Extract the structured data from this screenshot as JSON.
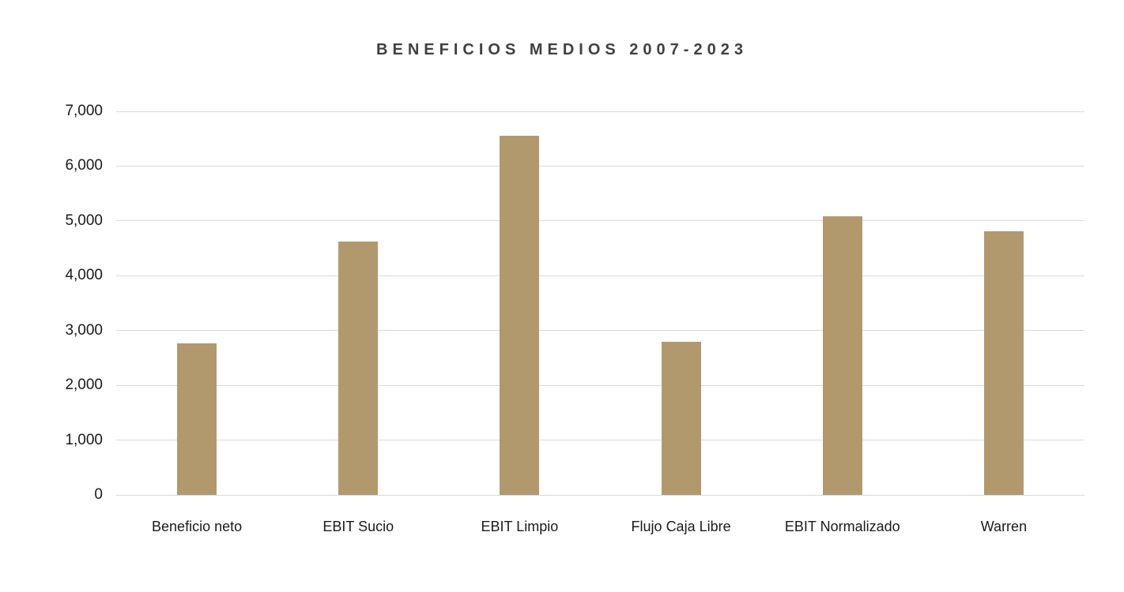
{
  "page": {
    "background": "#ffffff"
  },
  "chart_data": {
    "type": "bar",
    "title": "BENEFICIOS MEDIOS 2007-2023",
    "categories": [
      "Beneficio neto",
      "EBIT Sucio",
      "EBIT Limpio",
      "Flujo Caja Libre",
      "EBIT Normalizado",
      "Warren"
    ],
    "values": [
      2760,
      4620,
      6560,
      2790,
      5090,
      4810
    ],
    "xlabel": "",
    "ylabel": "",
    "ylim": [
      0,
      7000
    ],
    "ytick_interval": 1000,
    "ytick_labels": [
      "0",
      "1,000",
      "2,000",
      "3,000",
      "4,000",
      "5,000",
      "6,000",
      "7,000"
    ],
    "grid": true,
    "legend": false,
    "colors": {
      "bar": "#B2996D",
      "gridline": "#DADADA",
      "title": "#404040",
      "axis_text": "#1A1A1A"
    }
  }
}
